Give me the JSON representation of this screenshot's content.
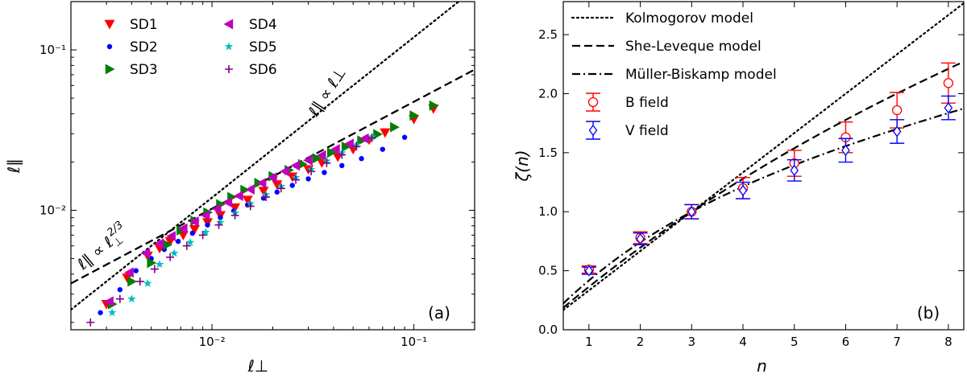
{
  "chart_data": [
    {
      "type": "scatter",
      "panel_label": "(a)",
      "xlabel": "ℓ⊥",
      "ylabel": "ℓ∥",
      "xscale": "log",
      "yscale": "log",
      "xlim": [
        0.002,
        0.2
      ],
      "ylim": [
        0.0018,
        0.2
      ],
      "x_tick_labels": [
        "10⁻²",
        "10⁻¹"
      ],
      "y_tick_labels": [
        "10⁻²",
        "10⁻¹"
      ],
      "legend_position": "upper-left",
      "annotations": {
        "linear": "ℓ∥ ∝ ℓ⊥",
        "two_thirds_prefix": "ℓ∥ ∝ ℓ",
        "two_thirds_sub": "⊥",
        "two_thirds_sup": "2/3"
      },
      "reference_lines": [
        {
          "name": "ℓ∥ ∝ ℓ⊥",
          "style": "dotted",
          "x": [
            0.002,
            0.2
          ],
          "y": [
            0.0024,
            0.24
          ]
        },
        {
          "name": "ℓ∥ ∝ ℓ⊥^(2/3)",
          "style": "dashed",
          "x": [
            0.002,
            0.2
          ],
          "y": [
            0.0035,
            0.0754
          ]
        }
      ],
      "series": [
        {
          "name": "SD1",
          "marker": "triangle-down",
          "color": "#ff0000",
          "x": [
            0.003,
            0.0038,
            0.0048,
            0.0055,
            0.0062,
            0.0072,
            0.0082,
            0.0095,
            0.011,
            0.013,
            0.015,
            0.018,
            0.021,
            0.025,
            0.03,
            0.035,
            0.042,
            0.05,
            0.06,
            0.072,
            0.1,
            0.125
          ],
          "y": [
            0.0026,
            0.0038,
            0.0052,
            0.0058,
            0.0064,
            0.007,
            0.0076,
            0.0084,
            0.0093,
            0.0104,
            0.0116,
            0.0132,
            0.0145,
            0.0162,
            0.018,
            0.0198,
            0.0215,
            0.024,
            0.0275,
            0.0305,
            0.037,
            0.043
          ]
        },
        {
          "name": "SD2",
          "marker": "circle",
          "color": "#0000ff",
          "x": [
            0.0028,
            0.0035,
            0.0042,
            0.005,
            0.0058,
            0.0068,
            0.008,
            0.0095,
            0.011,
            0.0128,
            0.015,
            0.018,
            0.021,
            0.025,
            0.03,
            0.036,
            0.044,
            0.055,
            0.07,
            0.09
          ],
          "y": [
            0.0023,
            0.0032,
            0.0042,
            0.005,
            0.0057,
            0.0064,
            0.0072,
            0.0081,
            0.009,
            0.0099,
            0.0108,
            0.0119,
            0.013,
            0.0143,
            0.0157,
            0.0172,
            0.019,
            0.021,
            0.024,
            0.0285
          ]
        },
        {
          "name": "SD3",
          "marker": "triangle-right",
          "color": "#008000",
          "x": [
            0.0032,
            0.004,
            0.005,
            0.006,
            0.007,
            0.0082,
            0.0095,
            0.011,
            0.0125,
            0.0145,
            0.017,
            0.02,
            0.024,
            0.028,
            0.033,
            0.039,
            0.046,
            0.055,
            0.066,
            0.08,
            0.1,
            0.125
          ],
          "y": [
            0.0026,
            0.0036,
            0.0047,
            0.0061,
            0.0075,
            0.0086,
            0.0097,
            0.0109,
            0.0121,
            0.0134,
            0.0148,
            0.0163,
            0.0178,
            0.0194,
            0.0211,
            0.0229,
            0.0249,
            0.0272,
            0.0298,
            0.033,
            0.039,
            0.045
          ]
        },
        {
          "name": "SD4",
          "marker": "triangle-left",
          "color": "#bf00bf",
          "x": [
            0.0031,
            0.0039,
            0.0047,
            0.0055,
            0.0063,
            0.0072,
            0.0082,
            0.0093,
            0.0106,
            0.012,
            0.0136,
            0.0155,
            0.0177,
            0.02,
            0.023,
            0.026,
            0.03,
            0.035,
            0.041,
            0.048,
            0.057
          ],
          "y": [
            0.0027,
            0.0041,
            0.0054,
            0.0062,
            0.0069,
            0.0077,
            0.0085,
            0.0093,
            0.0102,
            0.0112,
            0.0123,
            0.0135,
            0.0148,
            0.016,
            0.0175,
            0.019,
            0.0205,
            0.022,
            0.024,
            0.026,
            0.028
          ]
        },
        {
          "name": "SD5",
          "marker": "star",
          "color": "#00bfbf",
          "x": [
            0.0032,
            0.004,
            0.0048,
            0.0055,
            0.0065,
            0.0078,
            0.0093,
            0.011,
            0.013,
            0.0155,
            0.0185,
            0.022,
            0.026,
            0.031,
            0.037,
            0.044,
            0.052,
            0.062
          ],
          "y": [
            0.0023,
            0.0028,
            0.0035,
            0.0046,
            0.0054,
            0.0063,
            0.0073,
            0.0084,
            0.0096,
            0.011,
            0.0125,
            0.0141,
            0.016,
            0.018,
            0.0203,
            0.0228,
            0.0256,
            0.0287
          ]
        },
        {
          "name": "SD6",
          "marker": "plus",
          "color": "#800080",
          "x": [
            0.0025,
            0.0035,
            0.0044,
            0.0052,
            0.0062,
            0.0075,
            0.009,
            0.0108,
            0.013,
            0.0155,
            0.0185,
            0.022,
            0.026,
            0.031,
            0.037,
            0.044,
            0.052,
            0.062
          ],
          "y": [
            0.002,
            0.0028,
            0.0036,
            0.0043,
            0.0051,
            0.006,
            0.007,
            0.0081,
            0.0093,
            0.0106,
            0.0121,
            0.0137,
            0.0155,
            0.0175,
            0.0197,
            0.0222,
            0.025,
            0.0282
          ]
        }
      ]
    },
    {
      "type": "line",
      "panel_label": "(b)",
      "xlabel": "n",
      "ylabel": "ζ(n)",
      "xlim": [
        0.5,
        8.3
      ],
      "ylim": [
        0.0,
        2.78
      ],
      "x_ticks": [
        1,
        2,
        3,
        4,
        5,
        6,
        7,
        8
      ],
      "y_ticks": [
        0.0,
        0.5,
        1.0,
        1.5,
        2.0,
        2.5
      ],
      "x_tick_labels": [
        "1",
        "2",
        "3",
        "4",
        "5",
        "6",
        "7",
        "8"
      ],
      "y_tick_labels": [
        "0.0",
        "0.5",
        "1.0",
        "1.5",
        "2.0",
        "2.5"
      ],
      "legend_position": "upper-left",
      "models": [
        {
          "name": "Kolmogorov model",
          "style": "dotted"
        },
        {
          "name": "She-Leveque model",
          "style": "dashed"
        },
        {
          "name": "Müller-Biskamp model",
          "style": "dashdot"
        }
      ],
      "series": [
        {
          "name": "B field",
          "marker": "circle-open",
          "color": "#ff0000",
          "x": [
            1,
            2,
            3,
            4,
            5,
            6,
            7,
            8
          ],
          "y": [
            0.51,
            0.78,
            1.0,
            1.2,
            1.41,
            1.63,
            1.86,
            2.09
          ],
          "err": [
            0.03,
            0.05,
            0.06,
            0.09,
            0.11,
            0.13,
            0.15,
            0.17
          ]
        },
        {
          "name": "V field",
          "marker": "diamond-open",
          "color": "#0000ff",
          "x": [
            1,
            2,
            3,
            4,
            5,
            6,
            7,
            8
          ],
          "y": [
            0.5,
            0.77,
            1.0,
            1.18,
            1.35,
            1.52,
            1.68,
            1.88
          ],
          "err": [
            0.03,
            0.05,
            0.06,
            0.07,
            0.09,
            0.1,
            0.1,
            0.1
          ]
        }
      ]
    }
  ]
}
